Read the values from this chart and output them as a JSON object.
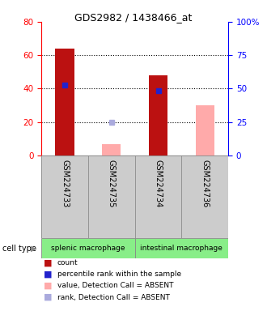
{
  "title": "GDS2982 / 1438466_at",
  "samples": [
    "GSM224733",
    "GSM224735",
    "GSM224734",
    "GSM224736"
  ],
  "count_values": [
    64,
    0,
    48,
    0
  ],
  "rank_values": [
    42,
    0,
    39,
    0
  ],
  "absent_value_values": [
    0,
    7,
    0,
    30
  ],
  "absent_rank_values": [
    0,
    20,
    0,
    0
  ],
  "is_absent": [
    false,
    true,
    false,
    true
  ],
  "cell_types": [
    {
      "label": "splenic macrophage",
      "span": [
        0,
        2
      ],
      "color": "#88ee88"
    },
    {
      "label": "intestinal macrophage",
      "span": [
        2,
        4
      ],
      "color": "#88ee88"
    }
  ],
  "ylim": [
    0,
    80
  ],
  "y2lim": [
    0,
    100
  ],
  "yticks": [
    0,
    20,
    40,
    60,
    80
  ],
  "y2ticks": [
    0,
    25,
    50,
    75,
    100
  ],
  "y2tick_labels": [
    "0",
    "25",
    "50",
    "75",
    "100%"
  ],
  "bar_width": 0.4,
  "count_color": "#bb1111",
  "rank_color": "#2222cc",
  "absent_value_color": "#ffaaaa",
  "absent_rank_color": "#aaaadd",
  "sample_bg_color": "#cccccc",
  "plot_bg_color": "#ffffff",
  "legend_items": [
    {
      "label": "count",
      "color": "#bb1111"
    },
    {
      "label": "percentile rank within the sample",
      "color": "#2222cc"
    },
    {
      "label": "value, Detection Call = ABSENT",
      "color": "#ffaaaa"
    },
    {
      "label": "rank, Detection Call = ABSENT",
      "color": "#aaaadd"
    }
  ]
}
